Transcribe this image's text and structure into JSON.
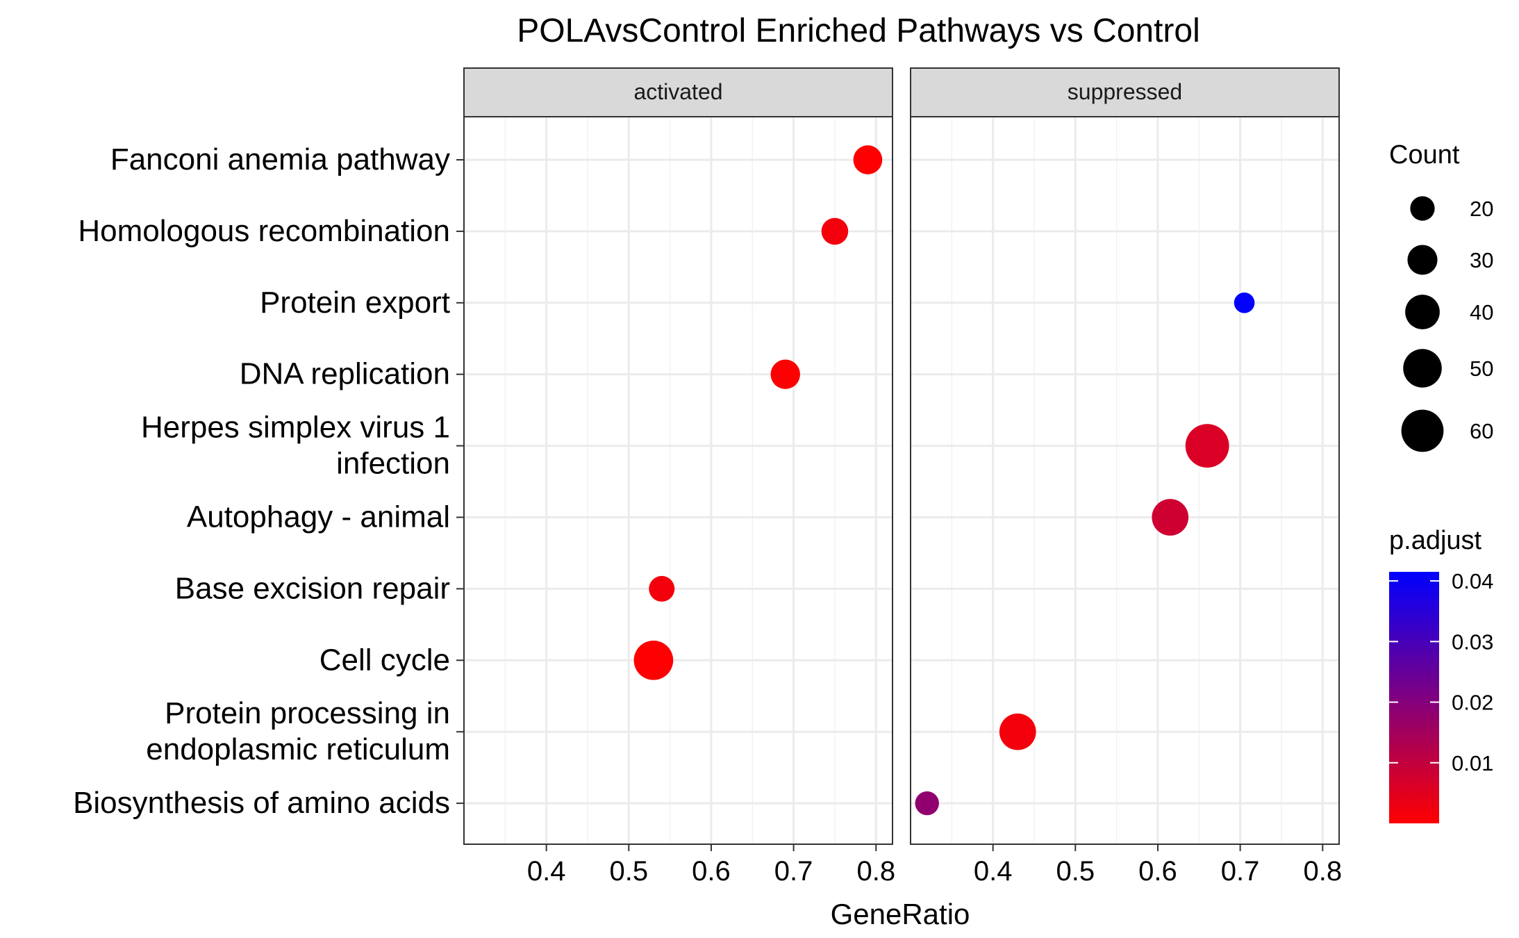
{
  "chart_data": {
    "type": "scatter",
    "title": "POLAvsControl Enriched Pathways vs Control",
    "xlabel": "GeneRatio",
    "ylabel": "",
    "xlim": [
      0.3,
      0.82
    ],
    "x_ticks": [
      0.4,
      0.5,
      0.6,
      0.7,
      0.8
    ],
    "x_tick_labels": [
      "0.4",
      "0.5",
      "0.6",
      "0.7",
      "0.8"
    ],
    "grid": true,
    "facets": [
      "activated",
      "suppressed"
    ],
    "categories": [
      "Fanconi anemia pathway",
      "Homologous recombination",
      "Protein export",
      "DNA replication",
      "Herpes simplex virus 1 infection",
      "Autophagy - animal",
      "Base excision repair",
      "Cell cycle",
      "Protein processing in endoplasmic reticulum",
      "Biosynthesis of amino acids"
    ],
    "category_lines": [
      [
        "Fanconi anemia pathway"
      ],
      [
        "Homologous recombination"
      ],
      [
        "Protein export"
      ],
      [
        "DNA replication"
      ],
      [
        "Herpes simplex virus 1",
        "infection"
      ],
      [
        "Autophagy - animal"
      ],
      [
        "Base excision repair"
      ],
      [
        "Cell cycle"
      ],
      [
        "Protein processing in",
        "endoplasmic reticulum"
      ],
      [
        "Biosynthesis of amino acids"
      ]
    ],
    "points": [
      {
        "facet": "activated",
        "category": "Fanconi anemia pathway",
        "x": 0.79,
        "count": 28,
        "p_adjust": 0.0002
      },
      {
        "facet": "activated",
        "category": "Homologous recombination",
        "x": 0.75,
        "count": 24,
        "p_adjust": 0.002
      },
      {
        "facet": "activated",
        "category": "DNA replication",
        "x": 0.69,
        "count": 29,
        "p_adjust": 0.0003
      },
      {
        "facet": "activated",
        "category": "Base excision repair",
        "x": 0.54,
        "count": 22,
        "p_adjust": 0.002
      },
      {
        "facet": "activated",
        "category": "Cell cycle",
        "x": 0.53,
        "count": 52,
        "p_adjust": 0.0001
      },
      {
        "facet": "suppressed",
        "category": "Protein export",
        "x": 0.705,
        "count": 14,
        "p_adjust": 0.041
      },
      {
        "facet": "suppressed",
        "category": "Herpes simplex virus 1 infection",
        "x": 0.66,
        "count": 64,
        "p_adjust": 0.006
      },
      {
        "facet": "suppressed",
        "category": "Autophagy - animal",
        "x": 0.615,
        "count": 45,
        "p_adjust": 0.008
      },
      {
        "facet": "suppressed",
        "category": "Protein processing in endoplasmic reticulum",
        "x": 0.43,
        "count": 45,
        "p_adjust": 0.002
      },
      {
        "facet": "suppressed",
        "category": "Biosynthesis of amino acids",
        "x": 0.32,
        "count": 19,
        "p_adjust": 0.018
      }
    ],
    "size_legend": {
      "title": "Count",
      "values": [
        20,
        30,
        40,
        50,
        60
      ],
      "labels": [
        "20",
        "30",
        "40",
        "50",
        "60"
      ]
    },
    "color_legend": {
      "title": "p.adjust",
      "ticks": [
        0.01,
        0.02,
        0.03,
        0.04
      ],
      "tick_labels": [
        "0.01",
        "0.02",
        "0.03",
        "0.04"
      ],
      "range": [
        0.0,
        0.0415
      ],
      "low_color": "#FF0000",
      "high_color": "#0000FF"
    },
    "colors": {
      "strip_fill": "#D9D9D9",
      "panel_border": "#333333",
      "grid_major": "#EBEBEB",
      "grid_minor": "#F2F2F2"
    }
  }
}
